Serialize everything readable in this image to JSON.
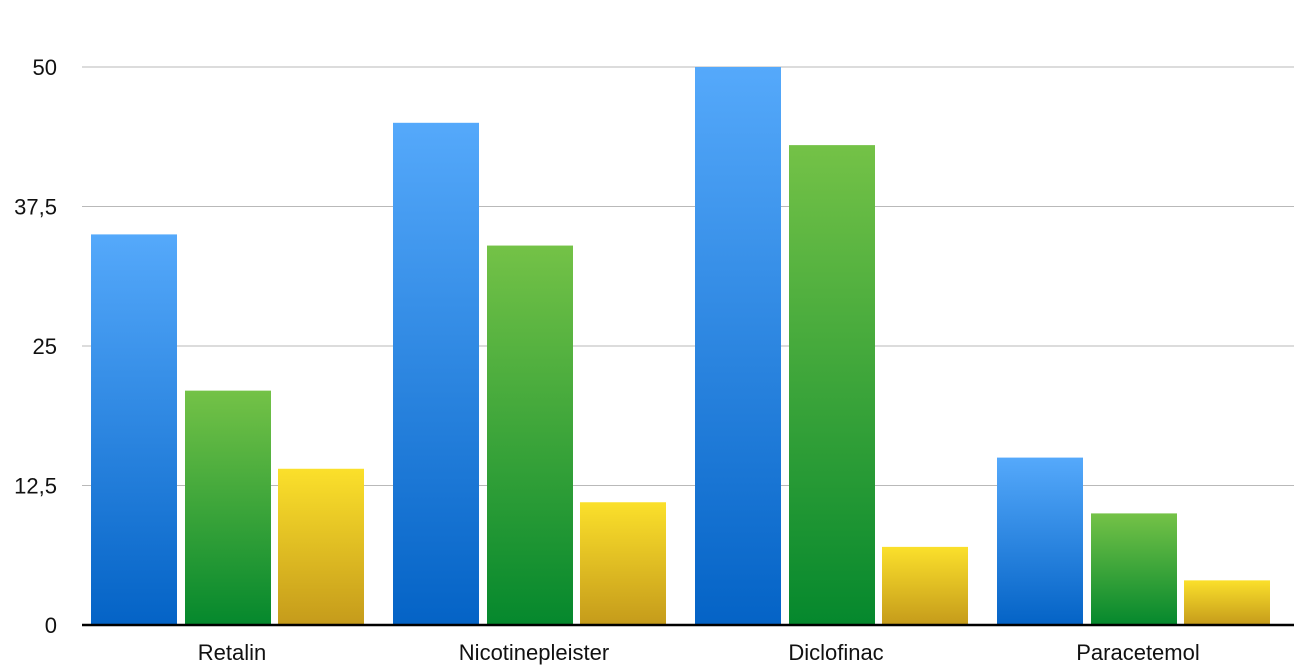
{
  "chart_data": {
    "type": "bar",
    "title": "",
    "xlabel": "",
    "ylabel": "",
    "categories": [
      "Retalin",
      "Nicotinepleister",
      "Diclofinac",
      "Paracetemol"
    ],
    "series": [
      {
        "values": [
          35,
          45,
          50,
          15
        ],
        "color_top": "#55a9fb",
        "color_bottom": "#0463c6"
      },
      {
        "values": [
          21,
          34,
          43,
          10
        ],
        "color_top": "#74c247",
        "color_bottom": "#05882d"
      },
      {
        "values": [
          14,
          11,
          7,
          4
        ],
        "color_top": "#fbe02b",
        "color_bottom": "#c59b1b"
      }
    ],
    "ylim": [
      0,
      50
    ],
    "yticks": [
      0,
      12.5,
      25,
      37.5,
      50
    ],
    "ytick_labels": [
      "0",
      "12,5",
      "25",
      "37,5",
      "50"
    ],
    "grid": true,
    "legend": "none"
  }
}
